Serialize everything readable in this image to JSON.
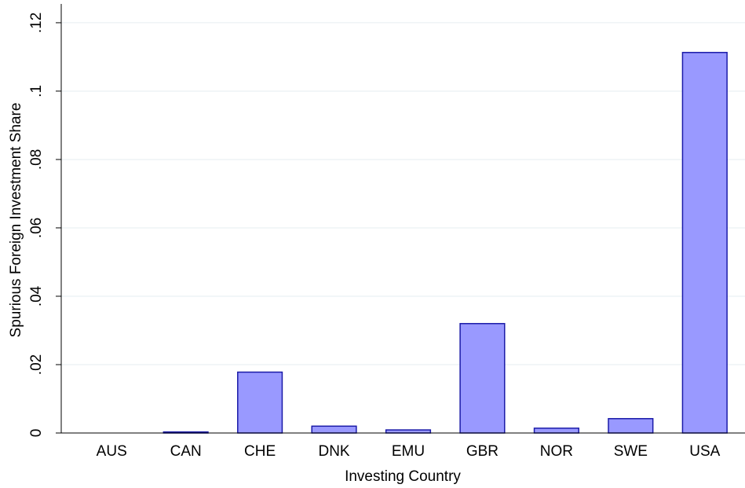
{
  "chart_data": {
    "type": "bar",
    "xlabel": "Investing Country",
    "ylabel": "Spurious Foreign Investment Share",
    "categories": [
      "AUS",
      "CAN",
      "CHE",
      "DNK",
      "EMU",
      "GBR",
      "NOR",
      "SWE",
      "USA"
    ],
    "values": [
      0,
      0.0003,
      0.0178,
      0.002,
      0.0009,
      0.032,
      0.0014,
      0.0042,
      0.1113
    ],
    "color": "#9999ff",
    "edgecolor": "#1a1aa8",
    "ylim": [
      0,
      0.1255
    ],
    "yticks": [
      0,
      {
        "value": 0.02,
        "label": ".02"
      },
      {
        "value": 0.04,
        "label": ".04"
      },
      {
        "value": 0.06,
        "label": ".06"
      },
      {
        "value": 0.08,
        "label": ".08"
      },
      {
        "value": 0.1,
        "label": ".1"
      },
      {
        "value": 0.12,
        "label": ".12"
      }
    ],
    "grid": true
  }
}
